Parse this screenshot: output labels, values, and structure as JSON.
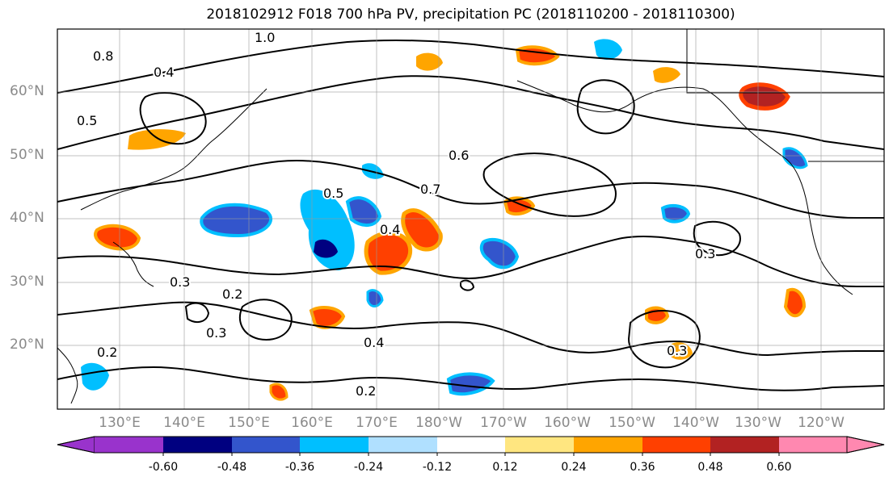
{
  "title": "2018102912 F018 700 hPa PV, precipitation PC (2018110200 - 2018110300)",
  "lat_labels": [
    "60°N",
    "50°N",
    "40°N",
    "30°N",
    "20°N"
  ],
  "lon_labels": [
    "130°E",
    "140°E",
    "150°E",
    "160°E",
    "170°E",
    "180°W",
    "170°W",
    "160°W",
    "150°W",
    "140°W",
    "130°W",
    "120°W"
  ],
  "colorbar": {
    "tick_labels": [
      "-0.60",
      "-0.48",
      "-0.36",
      "-0.24",
      "-0.12",
      "0.12",
      "0.24",
      "0.36",
      "0.48",
      "0.60"
    ],
    "colors": [
      "#9933cc",
      "#000080",
      "#3355cc",
      "#00bfff",
      "#b0e0ff",
      "#ffffff",
      "#ffe680",
      "#ffa500",
      "#ff4000",
      "#b22222",
      "#ff88b0"
    ]
  },
  "contour_labels": [
    "1.0",
    "0.8",
    "0.6",
    "0.5",
    "0.4",
    "0.7",
    "0.3",
    "0.2",
    "0.5",
    "0.4",
    "0.3",
    "0.2",
    "0.4",
    "0.3",
    "0.2",
    "0.3"
  ]
}
